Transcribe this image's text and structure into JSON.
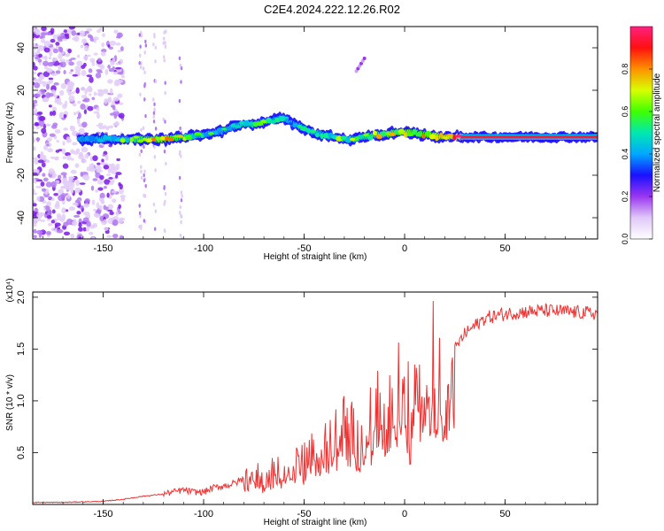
{
  "page_title": "C2E4.2024.222.12.26.R02",
  "chart_data": [
    {
      "type": "heatmap",
      "xlabel": "Height of straight line (km)",
      "ylabel": "Frequency (Hz)",
      "xlim": [
        -185,
        96
      ],
      "ylim": [
        -50,
        50
      ],
      "x_ticks": [
        -150,
        -100,
        -50,
        0,
        50
      ],
      "x_tick_labels": [
        "-150",
        "-100",
        "-50",
        "0",
        "50"
      ],
      "y_ticks": [
        -40,
        -20,
        0,
        20,
        40
      ],
      "y_tick_labels": [
        "-40",
        "-20",
        "0",
        "20",
        "40"
      ],
      "colorbar": {
        "label": "Normalized spectral amplitude",
        "range": [
          0,
          1
        ],
        "ticks": [
          0,
          0.2,
          0.4,
          0.6,
          0.8
        ],
        "tick_labels": [
          "0.0",
          "0.2",
          "0.4",
          "0.6",
          "0.8"
        ],
        "colors": [
          "#ffffff",
          "#e0c8f8",
          "#9a36f0",
          "#1a10ff",
          "#00a8ff",
          "#00e8b0",
          "#40ff00",
          "#d8ff00",
          "#ff9000",
          "#ff1010",
          "#ff2080"
        ]
      },
      "ridge": {
        "x": [
          -160,
          -150,
          -140,
          -130,
          -120,
          -110,
          -100,
          -90,
          -85,
          -80,
          -75,
          -70,
          -65,
          -60,
          -55,
          -50,
          -45,
          -40,
          -35,
          -30,
          -25,
          -20,
          -15,
          -10,
          -5,
          0,
          5,
          10,
          20,
          30,
          50,
          70,
          96
        ],
        "frequency": [
          -3,
          -3,
          -3,
          -3,
          -3,
          -2,
          -1,
          1,
          3,
          4,
          4,
          5,
          6,
          7,
          4,
          2,
          0,
          -1,
          -2,
          -3,
          -3,
          -2,
          -1,
          -1,
          0,
          0,
          0,
          -1,
          -2,
          -2,
          -2,
          -2,
          -2
        ],
        "amplitude": [
          0.35,
          0.5,
          0.6,
          0.7,
          0.8,
          0.65,
          0.55,
          0.5,
          0.55,
          0.6,
          0.65,
          0.6,
          0.5,
          0.45,
          0.45,
          0.5,
          0.5,
          0.55,
          0.6,
          0.6,
          0.6,
          0.65,
          0.7,
          0.7,
          0.75,
          0.8,
          0.75,
          0.75,
          0.85,
          0.9,
          0.95,
          0.95,
          0.95
        ]
      }
    },
    {
      "type": "line",
      "xlabel": "Height of straight line (km)",
      "ylabel": "SNR (10 * v/v)",
      "y_scale_label": "(x10⁴)",
      "xlim": [
        -185,
        96
      ],
      "ylim": [
        0,
        2.05
      ],
      "x_ticks": [
        -150,
        -100,
        -50,
        0,
        50
      ],
      "x_tick_labels": [
        "-150",
        "-100",
        "-50",
        "0",
        "50"
      ],
      "y_ticks": [
        0.5,
        1.0,
        1.5,
        2.0
      ],
      "y_tick_labels": [
        "0.5",
        "1.0",
        "1.5",
        "2.0"
      ],
      "color": "#ee3333",
      "series": [
        {
          "x": [
            -185,
            -170,
            -150,
            -140,
            -130,
            -120,
            -110,
            -105,
            -100,
            -95,
            -90,
            -85,
            -80,
            -75,
            -70,
            -65,
            -60,
            -55,
            -50,
            -45,
            -40,
            -35,
            -30,
            -25,
            -20,
            -15,
            -10,
            -5,
            0,
            3,
            5,
            8,
            10,
            15,
            20,
            25,
            30,
            40,
            50,
            60,
            70,
            80,
            90,
            96
          ],
          "values": [
            0.02,
            0.02,
            0.03,
            0.05,
            0.08,
            0.1,
            0.14,
            0.12,
            0.12,
            0.16,
            0.18,
            0.2,
            0.25,
            0.3,
            0.22,
            0.35,
            0.3,
            0.45,
            0.4,
            0.55,
            0.55,
            0.62,
            0.75,
            0.65,
            0.7,
            0.9,
            0.85,
            1.0,
            1.3,
            0.7,
            1.7,
            1.2,
            1.4,
            1.3,
            1.3,
            1.5,
            1.65,
            1.8,
            1.84,
            1.86,
            1.87,
            1.86,
            1.85,
            1.84
          ]
        }
      ]
    }
  ]
}
